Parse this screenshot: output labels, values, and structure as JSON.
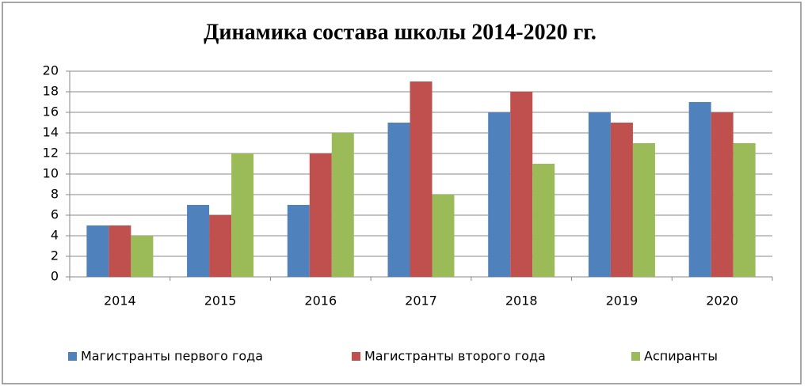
{
  "chart_data": {
    "type": "bar",
    "title": "Динамика состава  школы 2014-2020 гг.",
    "categories": [
      "2014",
      "2015",
      "2016",
      "2017",
      "2018",
      "2019",
      "2020"
    ],
    "series": [
      {
        "name": "Магистранты первого года",
        "color": "#4f81bd",
        "values": [
          5,
          7,
          7,
          15,
          16,
          16,
          17
        ]
      },
      {
        "name": "Магистранты второго года",
        "color": "#c0504d",
        "values": [
          5,
          6,
          12,
          19,
          18,
          15,
          16
        ]
      },
      {
        "name": "Аспиранты",
        "color": "#9bbb59",
        "values": [
          4,
          12,
          14,
          8,
          11,
          13,
          13
        ]
      }
    ],
    "ylim": [
      0,
      20
    ],
    "yticks": [
      0,
      2,
      4,
      6,
      8,
      10,
      12,
      14,
      16,
      18,
      20
    ],
    "grid": true,
    "legend": "bottom"
  }
}
